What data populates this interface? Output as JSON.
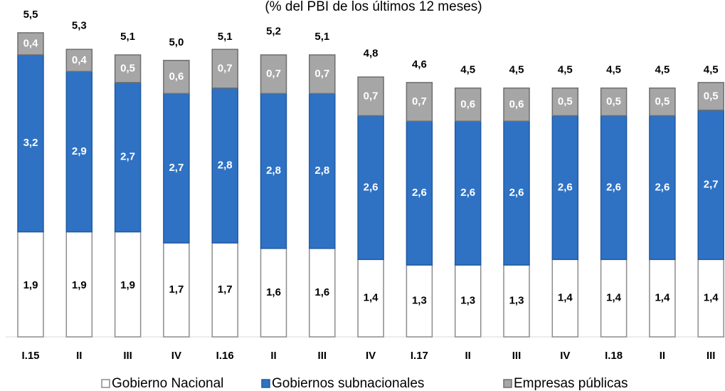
{
  "chart_data": {
    "type": "stacked-bar",
    "subtitle": "(% del PBI de los últimos 12 meses)",
    "categories": [
      "I.15",
      "II",
      "III",
      "IV",
      "I.16",
      "II",
      "III",
      "IV",
      "I.17",
      "II",
      "III",
      "IV",
      "I.18",
      "II",
      "III"
    ],
    "ylim": [
      0,
      5.5
    ],
    "series": [
      {
        "name": "Gobierno Nacional",
        "color": "#ffffff",
        "values": [
          1.9,
          1.9,
          1.9,
          1.7,
          1.7,
          1.6,
          1.6,
          1.4,
          1.3,
          1.3,
          1.3,
          1.4,
          1.4,
          1.4,
          1.4
        ],
        "value_labels": [
          "1,9",
          "1,9",
          "1,9",
          "1,7",
          "1,7",
          "1,6",
          "1,6",
          "1,4",
          "1,3",
          "1,3",
          "1,3",
          "1,4",
          "1,4",
          "1,4",
          "1,4"
        ]
      },
      {
        "name": "Gobiernos subnacionales",
        "color": "#2f72c4",
        "values": [
          3.2,
          2.9,
          2.7,
          2.7,
          2.8,
          2.8,
          2.8,
          2.6,
          2.6,
          2.6,
          2.6,
          2.6,
          2.6,
          2.6,
          2.7
        ],
        "value_labels": [
          "3,2",
          "2,9",
          "2,7",
          "2,7",
          "2,8",
          "2,8",
          "2,8",
          "2,6",
          "2,6",
          "2,6",
          "2,6",
          "2,6",
          "2,6",
          "2,6",
          "2,7"
        ]
      },
      {
        "name": "Empresas públicas",
        "color": "#a6a6a6",
        "values": [
          0.4,
          0.4,
          0.5,
          0.6,
          0.7,
          0.7,
          0.7,
          0.7,
          0.7,
          0.6,
          0.6,
          0.5,
          0.5,
          0.5,
          0.5
        ],
        "value_labels": [
          "0,4",
          "0,4",
          "0,5",
          "0,6",
          "0,7",
          "0,7",
          "0,7",
          "0,7",
          "0,7",
          "0,6",
          "0,6",
          "0,5",
          "0,5",
          "0,5",
          "0,5"
        ]
      }
    ],
    "totals": {
      "values": [
        5.5,
        5.3,
        5.1,
        5.0,
        5.1,
        5.2,
        5.1,
        4.8,
        4.6,
        4.5,
        4.5,
        4.5,
        4.5,
        4.5,
        4.5
      ],
      "value_labels": [
        "5,5",
        "5,3",
        "5,1",
        "5,0",
        "5,1",
        "5,2",
        "5,1",
        "4,8",
        "4,6",
        "4,5",
        "4,5",
        "4,5",
        "4,5",
        "4,5",
        "4,5"
      ]
    }
  }
}
